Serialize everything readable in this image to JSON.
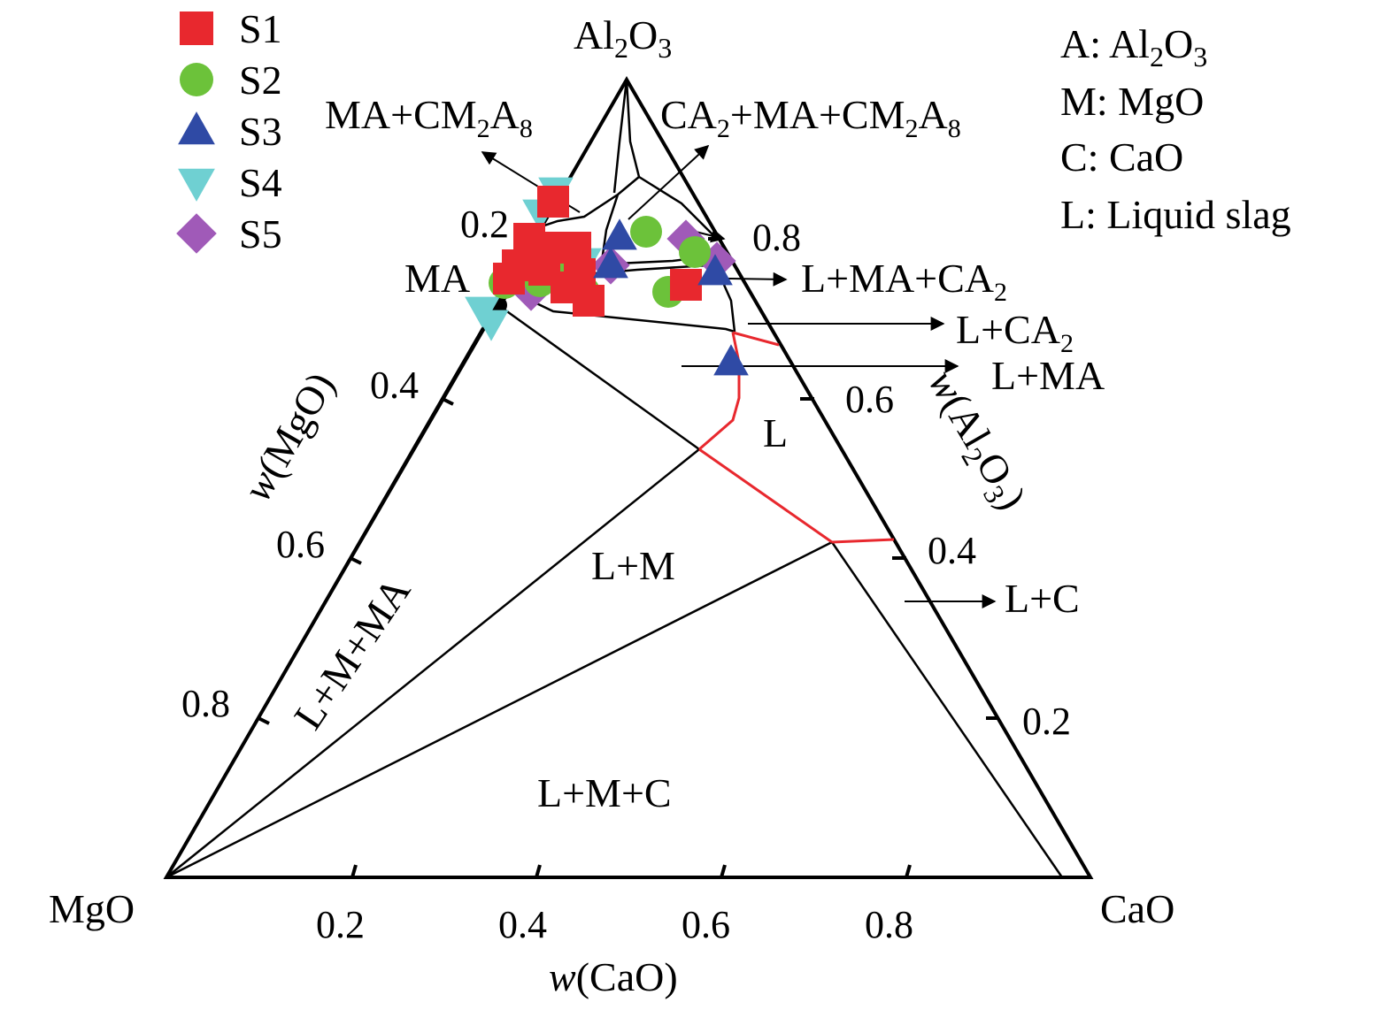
{
  "vertices": {
    "top": "Al2O3",
    "left": "MgO",
    "right": "CaO"
  },
  "axis_titles": {
    "mgo": "w(MgO)",
    "cao": "w(CaO)",
    "al2o3": "w(Al2O3)"
  },
  "ticks": {
    "left": [
      "0.2",
      "0.4",
      "0.6",
      "0.8"
    ],
    "bottom": [
      "0.2",
      "0.4",
      "0.6",
      "0.8"
    ],
    "right": [
      "0.8",
      "0.6",
      "0.4",
      "0.2"
    ]
  },
  "legend": [
    {
      "name": "S1",
      "shape": "square",
      "color": "#e8282e"
    },
    {
      "name": "S2",
      "shape": "circle",
      "color": "#6cc23a"
    },
    {
      "name": "S3",
      "shape": "triangle-up",
      "color": "#2f4aa5"
    },
    {
      "name": "S4",
      "shape": "triangle-down",
      "color": "#6fd0d2"
    },
    {
      "name": "S5",
      "shape": "diamond",
      "color": "#a05ab8"
    }
  ],
  "key": [
    "A: Al2O3",
    "M: MgO",
    "C: CaO",
    "L: Liquid slag"
  ],
  "regions": {
    "ma_cm2a8": "MA+CM2A8",
    "ca2_ma_cm2a8": "CA2+MA+CM2A8",
    "l_ma_ca2": "L+MA+CA2",
    "l_ca2": "L+CA2",
    "l_ma": "L+MA",
    "l": "L",
    "l_m": "L+M",
    "l_m_ma": "L+M+MA",
    "l_c": "L+C",
    "l_m_c": "L+M+C",
    "ma": "MA"
  },
  "colors": {
    "liquidus": "#e8282e",
    "lines": "#000000"
  }
}
